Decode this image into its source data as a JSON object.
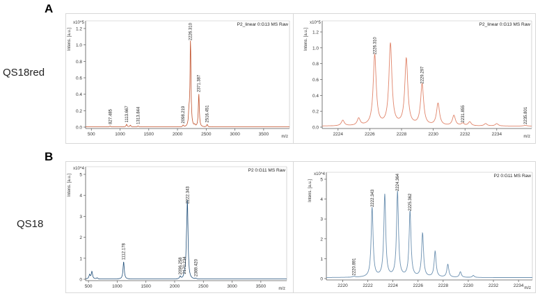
{
  "figure": {
    "panel_labels": [
      "A",
      "B"
    ],
    "sample_labels": [
      "QS18red",
      "QS18"
    ]
  },
  "chart_data": [
    {
      "type": "line",
      "title": "P2_linear 0:G13 MS Raw",
      "ylabel": "Intens. [a.u.]",
      "xlabel": "m/z",
      "y_multiplier": "x10^5",
      "color": "#c0502a",
      "xlim": [
        400,
        3950
      ],
      "ylim": [
        0,
        1.25
      ],
      "xticks": [
        500,
        1000,
        1500,
        2000,
        2500,
        3000,
        3500
      ],
      "yticks": [
        "0.0",
        "0.2",
        "0.4",
        "0.6",
        "0.8",
        "1.0",
        "1.2"
      ],
      "peaks": [
        {
          "x": 827.485,
          "y": 0.01,
          "label": "827.485"
        },
        {
          "x": 1113.667,
          "y": 0.03,
          "label": "1113.667"
        },
        {
          "x": 1180,
          "y": 0.02
        },
        {
          "x": 1313.844,
          "y": 0.01,
          "label": "1313.844"
        },
        {
          "x": 2098.219,
          "y": 0.02,
          "label": "2098.219"
        },
        {
          "x": 2200,
          "y": 0.14
        },
        {
          "x": 2226.31,
          "y": 1.03,
          "label": "2226.310"
        },
        {
          "x": 2300,
          "y": 0.02
        },
        {
          "x": 2371.387,
          "y": 0.4,
          "label": "2371.387"
        },
        {
          "x": 2516.451,
          "y": 0.03,
          "label": "2516.451"
        }
      ]
    },
    {
      "type": "line",
      "title": "P2_linear 0:G13 MS Raw",
      "ylabel": "Intens. [a.u.]",
      "xlabel": "m/z",
      "y_multiplier": "x10^5",
      "color": "#e0846a",
      "xlim": [
        2223.0,
        2236.2
      ],
      "ylim": [
        0,
        1.25
      ],
      "xticks": [
        2224,
        2226,
        2228,
        2230,
        2232,
        2234
      ],
      "yticks": [
        "0.0",
        "0.2",
        "0.4",
        "0.6",
        "0.8",
        "1.0",
        "1.2"
      ],
      "peaks": [
        {
          "x": 2224.3,
          "y": 0.07
        },
        {
          "x": 2225.3,
          "y": 0.09
        },
        {
          "x": 2226.31,
          "y": 0.89,
          "label": "2226.310"
        },
        {
          "x": 2227.3,
          "y": 1.03
        },
        {
          "x": 2228.3,
          "y": 0.84
        },
        {
          "x": 2229.297,
          "y": 0.52,
          "label": "2229.297"
        },
        {
          "x": 2230.3,
          "y": 0.28
        },
        {
          "x": 2231.3,
          "y": 0.13
        },
        {
          "x": 2231.855,
          "y": 0.03,
          "label": "2231.855"
        },
        {
          "x": 2232.3,
          "y": 0.05
        },
        {
          "x": 2233.3,
          "y": 0.03
        },
        {
          "x": 2234.0,
          "y": 0.03
        },
        {
          "x": 2235.801,
          "y": 0.01,
          "label": "2235.801"
        }
      ]
    },
    {
      "type": "line",
      "title": "P2 0:G11 MS Raw",
      "ylabel": "Intens. [a.u.]",
      "xlabel": "m/z",
      "y_multiplier": "x10^4",
      "color": "#1f4e79",
      "xlim": [
        450,
        3950
      ],
      "ylim": [
        0,
        5.2
      ],
      "xticks": [
        500,
        1000,
        1500,
        2000,
        2500,
        3000,
        3500
      ],
      "yticks": [
        "0",
        "1",
        "2",
        "3",
        "4",
        "5"
      ],
      "peaks": [
        {
          "x": 520,
          "y": 0.2
        },
        {
          "x": 560,
          "y": 0.35
        },
        {
          "x": 650,
          "y": 0.05
        },
        {
          "x": 1112.178,
          "y": 0.82,
          "label": "1112.178"
        },
        {
          "x": 2096.258,
          "y": 0.12,
          "label": "2096.258"
        },
        {
          "x": 2170.234,
          "y": 0.15,
          "label": "2170.234"
        },
        {
          "x": 2205,
          "y": 0.85
        },
        {
          "x": 2222.343,
          "y": 3.5,
          "label": "2222.343"
        },
        {
          "x": 2369.42,
          "y": 0.03,
          "label": "2369.420"
        }
      ]
    },
    {
      "type": "line",
      "title": "P2 0:G11 MS Raw",
      "ylabel": "Intens. [a.u.]",
      "xlabel": "m/z",
      "y_multiplier": "x10^4",
      "color": "#6a8fb0",
      "xlim": [
        2218.7,
        2235.1
      ],
      "ylim": [
        0,
        5.2
      ],
      "xticks": [
        2220,
        2222,
        2224,
        2226,
        2228,
        2230,
        2232,
        2234
      ],
      "yticks": [
        "0",
        "1",
        "2",
        "3",
        "4",
        "5"
      ],
      "peaks": [
        {
          "x": 2220.891,
          "y": 0.05,
          "label": "2220.891"
        },
        {
          "x": 2222.343,
          "y": 3.5,
          "label": "2222.343"
        },
        {
          "x": 2223.35,
          "y": 4.15
        },
        {
          "x": 2224.364,
          "y": 4.3,
          "label": "2224.364"
        },
        {
          "x": 2225.362,
          "y": 3.3,
          "label": "2225.362"
        },
        {
          "x": 2226.36,
          "y": 2.2
        },
        {
          "x": 2227.36,
          "y": 1.3
        },
        {
          "x": 2228.37,
          "y": 0.65
        },
        {
          "x": 2229.37,
          "y": 0.28
        },
        {
          "x": 2230.4,
          "y": 0.1
        }
      ]
    }
  ]
}
